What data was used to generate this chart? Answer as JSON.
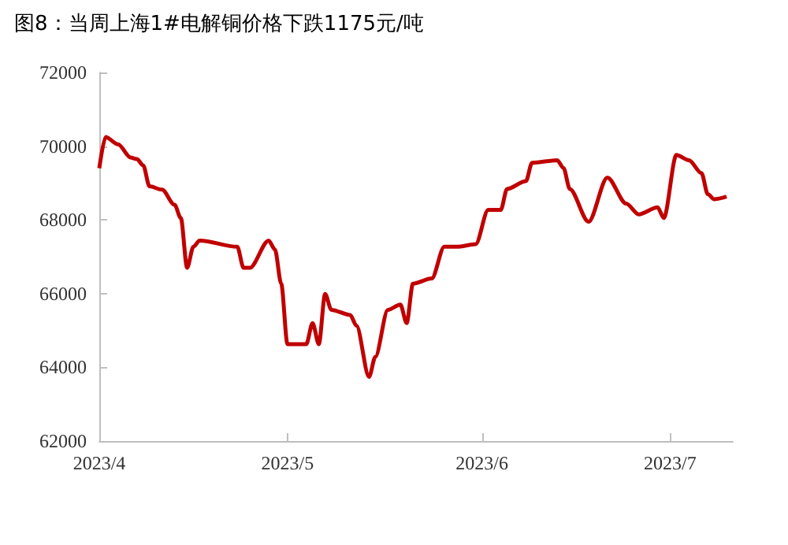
{
  "chart_data": {
    "type": "line",
    "title": "图8：当周上海1#电解铜价格下跌1175元/吨",
    "x": [
      "2023-04-01",
      "2023-04-02",
      "2023-04-04",
      "2023-04-06",
      "2023-04-07",
      "2023-04-08",
      "2023-04-09",
      "2023-04-11",
      "2023-04-13",
      "2023-04-14",
      "2023-04-15",
      "2023-04-16",
      "2023-04-17",
      "2023-04-23",
      "2023-04-24",
      "2023-04-25",
      "2023-04-28",
      "2023-04-29",
      "2023-04-30",
      "2023-05-01",
      "2023-05-04",
      "2023-05-05",
      "2023-05-06",
      "2023-05-07",
      "2023-05-08",
      "2023-05-11",
      "2023-05-12",
      "2023-05-14",
      "2023-05-15",
      "2023-05-17",
      "2023-05-19",
      "2023-05-20",
      "2023-05-21",
      "2023-05-24",
      "2023-05-26",
      "2023-05-28",
      "2023-05-31",
      "2023-06-02",
      "2023-06-04",
      "2023-06-05",
      "2023-06-08",
      "2023-06-09",
      "2023-06-13",
      "2023-06-14",
      "2023-06-15",
      "2023-06-18",
      "2023-06-21",
      "2023-06-24",
      "2023-06-26",
      "2023-06-29",
      "2023-06-30",
      "2023-07-02",
      "2023-07-04",
      "2023-07-06",
      "2023-07-07",
      "2023-07-08",
      "2023-07-10"
    ],
    "series": [
      {
        "color": "#c00000",
        "values": [
          69400,
          70250,
          70050,
          69690,
          69650,
          69480,
          68910,
          68820,
          68410,
          68050,
          66700,
          67270,
          67440,
          67270,
          66700,
          66700,
          67440,
          67200,
          66270,
          64630,
          64630,
          65200,
          64630,
          65990,
          65560,
          65420,
          65130,
          63740,
          64280,
          65560,
          65700,
          65200,
          66270,
          66410,
          67270,
          67270,
          67340,
          68270,
          68270,
          68840,
          69050,
          69550,
          69620,
          69410,
          68840,
          67950,
          69150,
          68440,
          68150,
          68340,
          68050,
          69760,
          69620,
          69270,
          68700,
          68560,
          68630
        ]
      }
    ],
    "xlim": [
      "2023-04-01",
      "2023-07-11"
    ],
    "xticks": [
      {
        "value": "2023-04-01",
        "label": "2023/4"
      },
      {
        "value": "2023-05-01",
        "label": "2023/5"
      },
      {
        "value": "2023-06-01",
        "label": "2023/6"
      },
      {
        "value": "2023-07-01",
        "label": "2023/7"
      }
    ],
    "ylim": [
      62000,
      72000
    ],
    "yticks": [
      62000,
      64000,
      66000,
      68000,
      70000,
      72000
    ],
    "grid": false,
    "marker": "none",
    "line_style": "solid"
  }
}
